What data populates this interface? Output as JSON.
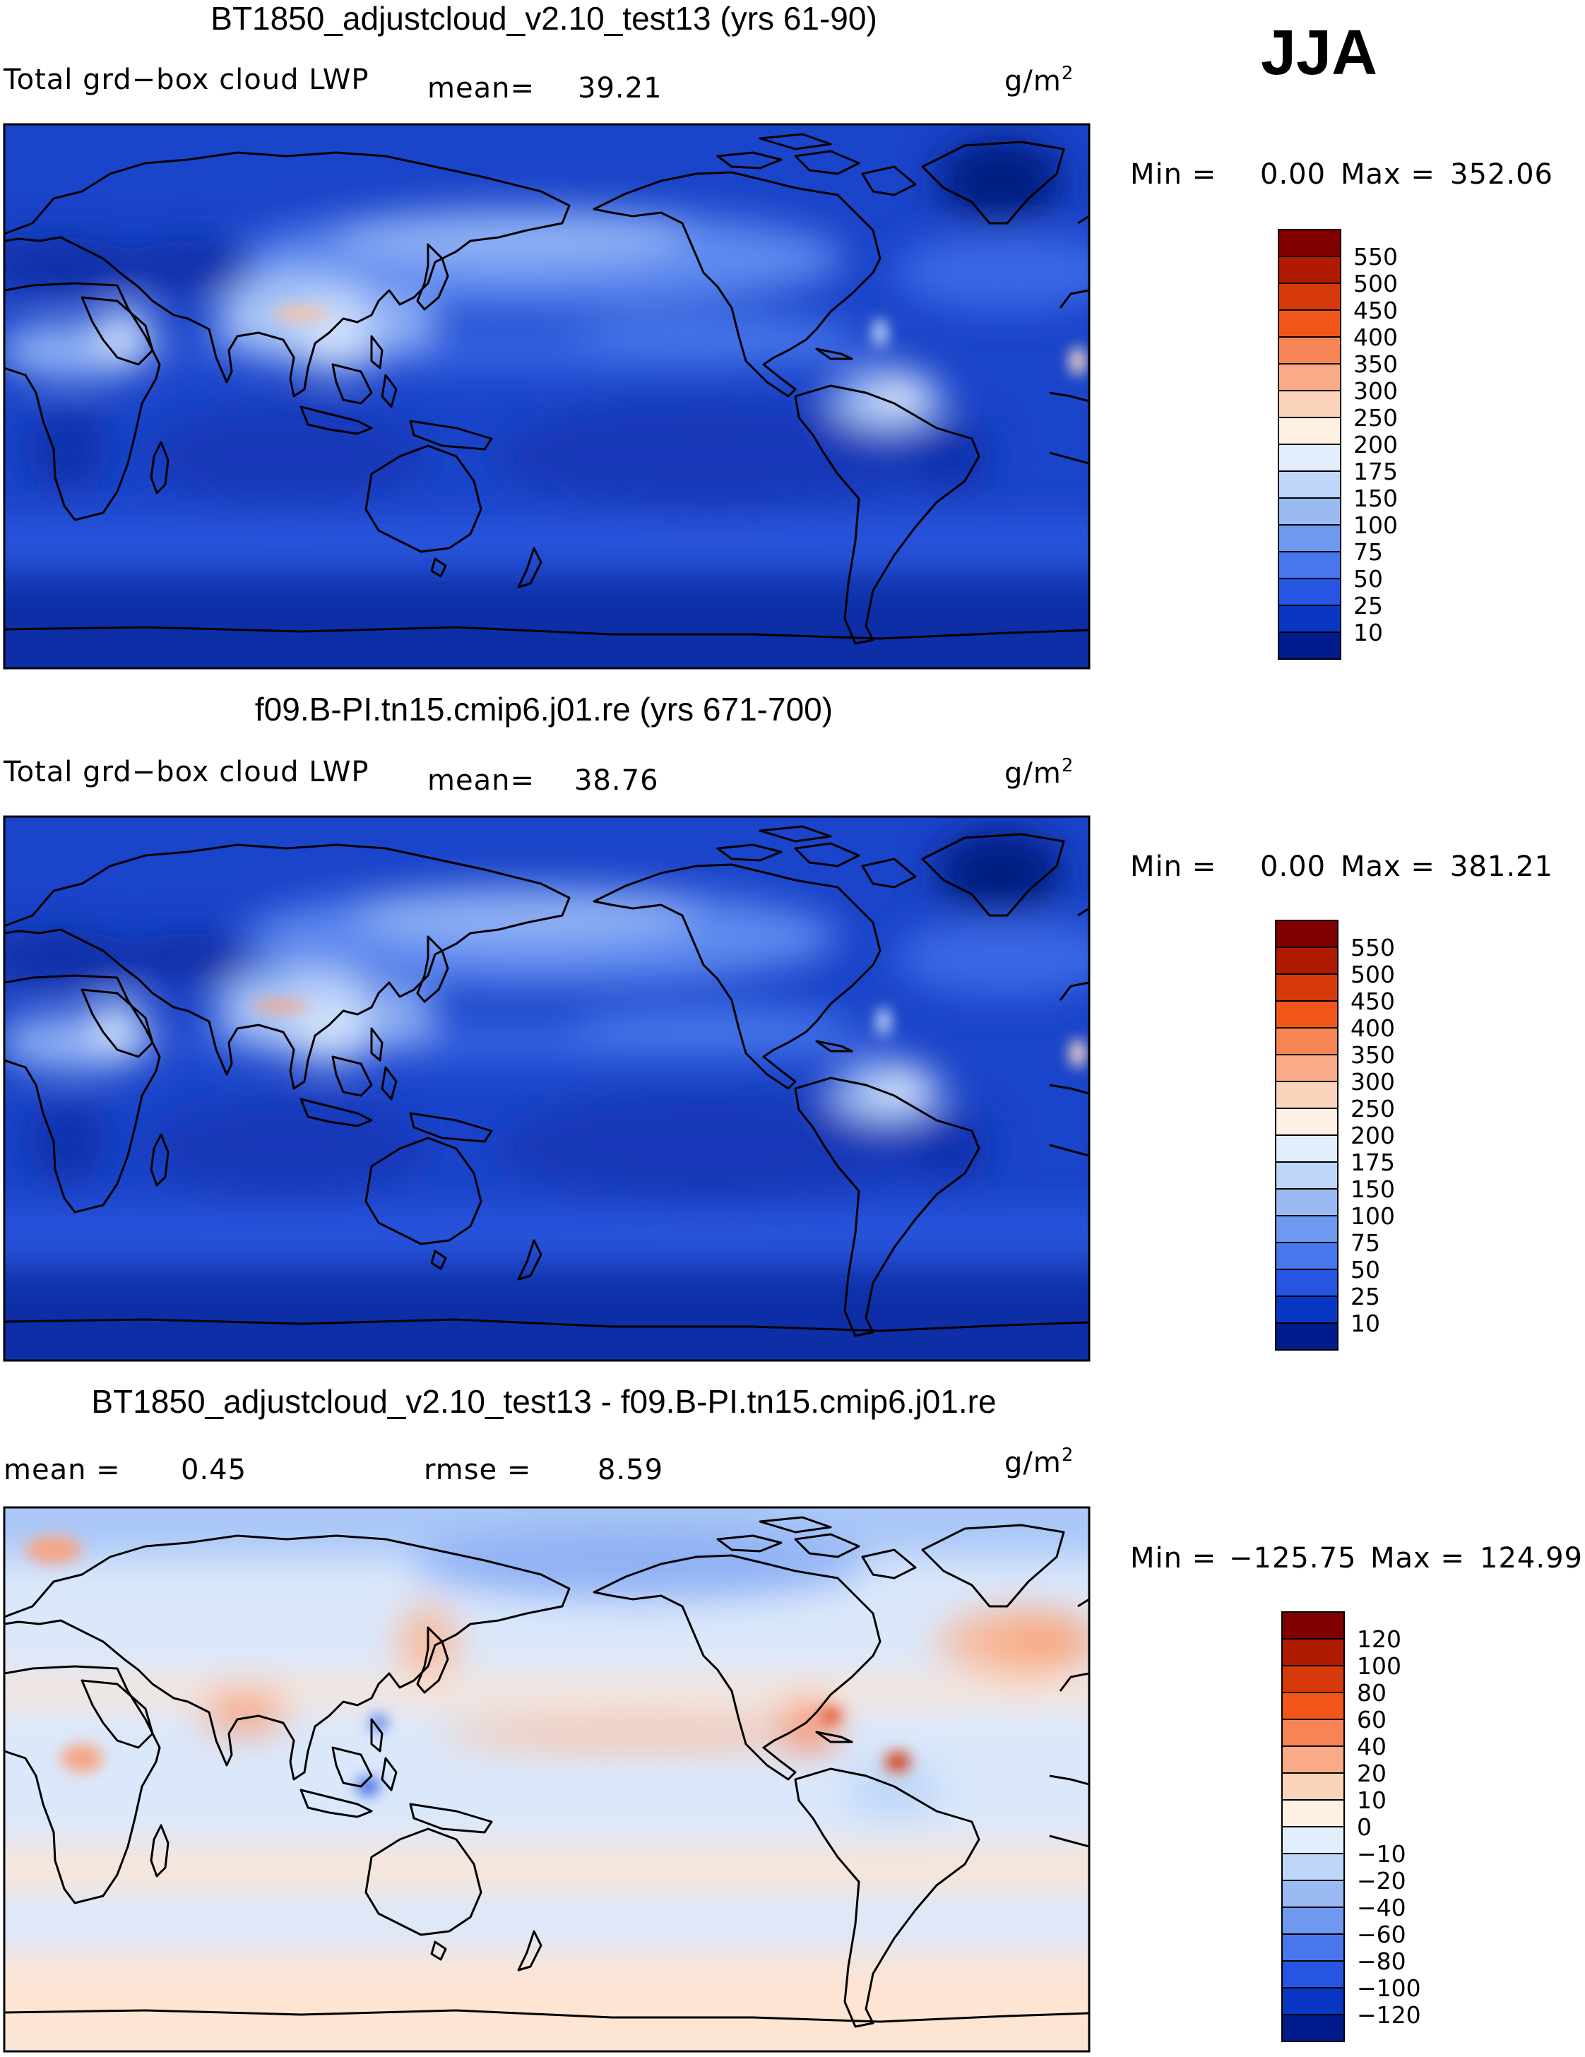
{
  "season": "JJA",
  "panels": [
    {
      "title": "BT1850_adjustcloud_v2.10_test13 (yrs 61-90)",
      "variable": "Total grd−box cloud LWP",
      "mean_label": "mean=",
      "mean_value": "39.21",
      "units": "g/m",
      "units_exp": "2",
      "min_label": "Min  =",
      "min_value": "0.00",
      "max_label": "Max  =",
      "max_value": "352.06",
      "colorbar_labels": [
        "550",
        "500",
        "450",
        "400",
        "350",
        "300",
        "250",
        "200",
        "175",
        "150",
        "100",
        "75",
        "50",
        "25",
        "10"
      ],
      "colorbar_colors": [
        "#800000",
        "#b01a00",
        "#d63a0b",
        "#f2561b",
        "#f78455",
        "#f9aa86",
        "#fcd4bc",
        "#fff0e4",
        "#e2eefb",
        "#bed6f8",
        "#9abaf3",
        "#6f99ee",
        "#4876ec",
        "#2555e2",
        "#0a36c4",
        "#001b8c"
      ],
      "ocean_base": "#1a44c9"
    },
    {
      "title": "f09.B-PI.tn15.cmip6.j01.re (yrs 671-700)",
      "variable": "Total grd−box cloud LWP",
      "mean_label": "mean=",
      "mean_value": "38.76",
      "units": "g/m",
      "units_exp": "2",
      "min_label": "Min  =",
      "min_value": "0.00",
      "max_label": "Max  =",
      "max_value": "381.21",
      "colorbar_labels": [
        "550",
        "500",
        "450",
        "400",
        "350",
        "300",
        "250",
        "200",
        "175",
        "150",
        "100",
        "75",
        "50",
        "25",
        "10"
      ],
      "colorbar_colors": [
        "#800000",
        "#b01a00",
        "#d63a0b",
        "#f2561b",
        "#f78455",
        "#f9aa86",
        "#fcd4bc",
        "#fff0e4",
        "#e2eefb",
        "#bed6f8",
        "#9abaf3",
        "#6f99ee",
        "#4876ec",
        "#2555e2",
        "#0a36c4",
        "#001b8c"
      ],
      "ocean_base": "#1a44c9"
    },
    {
      "title": "BT1850_adjustcloud_v2.10_test13 - f09.B-PI.tn15.cmip6.j01.re",
      "variable": "",
      "mean_label": "mean  =",
      "mean_value": "0.45",
      "rmse_label": "rmse  =",
      "rmse_value": "8.59",
      "units": "g/m",
      "units_exp": "2",
      "min_label": "Min  =",
      "min_value": "−125.75",
      "max_label": "Max  =",
      "max_value": "124.99",
      "colorbar_labels": [
        "120",
        "100",
        "80",
        "60",
        "40",
        "20",
        "10",
        "0",
        "−10",
        "−20",
        "−40",
        "−60",
        "−80",
        "−100",
        "−120"
      ],
      "colorbar_colors": [
        "#800000",
        "#b01a00",
        "#d63a0b",
        "#f2561b",
        "#f78455",
        "#f9aa86",
        "#fcd4bc",
        "#fff0e4",
        "#e2eefb",
        "#bed6f8",
        "#9abaf3",
        "#6f99ee",
        "#4876ec",
        "#2555e2",
        "#0a36c4",
        "#001b8c"
      ],
      "ocean_base": "#dbe8fb"
    }
  ]
}
